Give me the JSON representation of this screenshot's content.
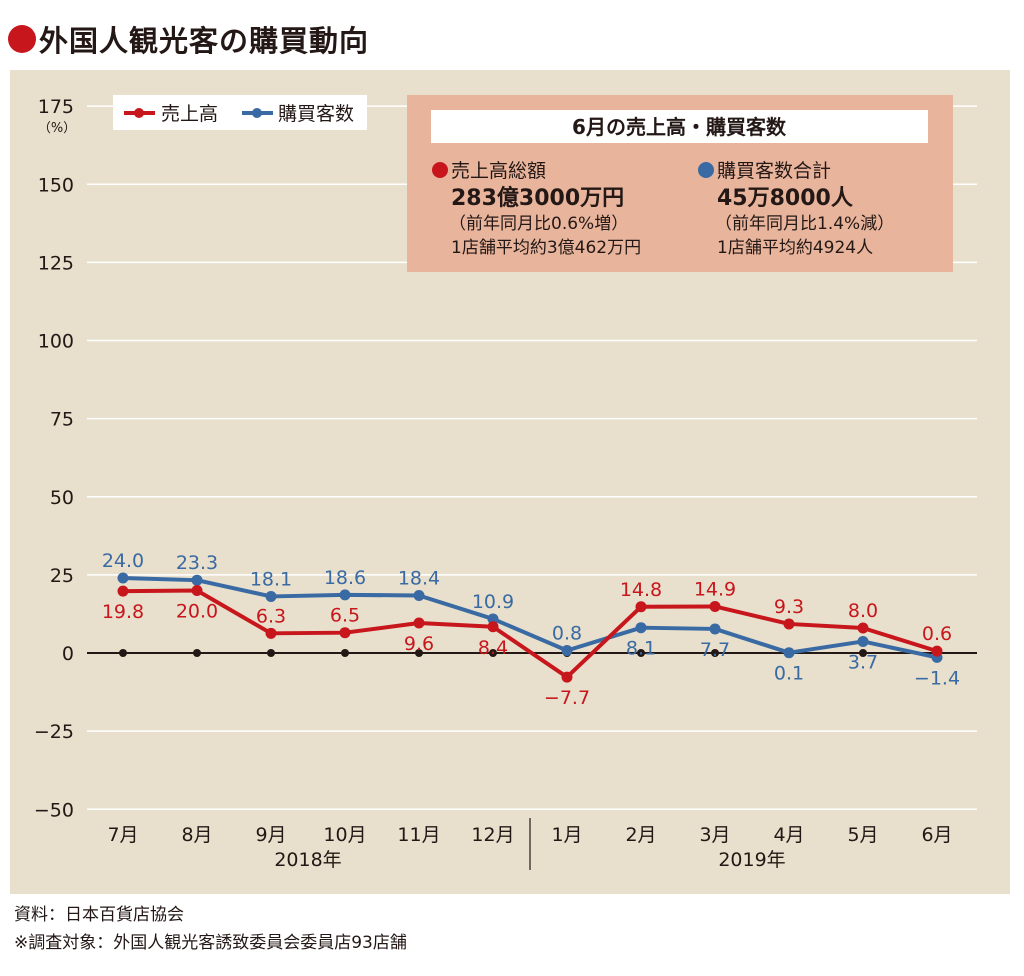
{
  "header": {
    "title": "外国人観光客の購買動向",
    "bullet_color": "#c8161d"
  },
  "colors": {
    "panel_bg": "#e8e0cc",
    "info_bg": "#e8b49c",
    "red": "#c8161d",
    "blue": "#3a6aa3"
  },
  "info_box": {
    "title": "6月の売上高・購買客数",
    "left": {
      "heading": "売上高総額",
      "amount": "283億3000万円",
      "change": "（前年同月比0.6%増）",
      "average": "1店舗平均約3億462万円"
    },
    "right": {
      "heading": "購買客数合計",
      "amount": "45万8000人",
      "change": "（前年同月比1.4%減）",
      "average": "1店舗平均約4924人"
    }
  },
  "chart_data": {
    "type": "line",
    "ylim": [
      -50,
      175
    ],
    "yticks": [
      -50,
      -25,
      0,
      25,
      50,
      75,
      100,
      125,
      150,
      175
    ],
    "ytick_labels": [
      "−50",
      "−25",
      "0",
      "25",
      "50",
      "75",
      "100",
      "125",
      "150",
      "175"
    ],
    "yunit": "（%）",
    "categories": [
      "7月",
      "8月",
      "9月",
      "10月",
      "11月",
      "12月",
      "1月",
      "2月",
      "3月",
      "4月",
      "5月",
      "6月"
    ],
    "year_groups": [
      {
        "label": "2018年",
        "from": 0,
        "to": 5
      },
      {
        "label": "2019年",
        "from": 6,
        "to": 11
      }
    ],
    "grid": true,
    "legend_position": "top-left",
    "series": [
      {
        "name": "売上高",
        "color": "#c8161d",
        "values": [
          19.8,
          20.0,
          6.3,
          6.5,
          9.6,
          8.4,
          -7.7,
          14.8,
          14.9,
          9.3,
          8.0,
          0.6
        ],
        "labels": [
          "19.8",
          "20.0",
          "6.3",
          "6.5",
          "9.6",
          "8.4",
          "−7.7",
          "14.8",
          "14.9",
          "9.3",
          "8.0",
          "0.6"
        ]
      },
      {
        "name": "購買客数",
        "color": "#3a6aa3",
        "values": [
          24.0,
          23.3,
          18.1,
          18.6,
          18.4,
          10.9,
          0.8,
          8.1,
          7.7,
          0.1,
          3.7,
          -1.4
        ],
        "labels": [
          "24.0",
          "23.3",
          "18.1",
          "18.6",
          "18.4",
          "10.9",
          "0.8",
          "8.1",
          "7.7",
          "0.1",
          "3.7",
          "−1.4"
        ]
      }
    ]
  },
  "footer": {
    "source": "資料：日本百貨店協会",
    "note": "※調査対象：外国人観光客誘致委員会委員店93店舗"
  }
}
